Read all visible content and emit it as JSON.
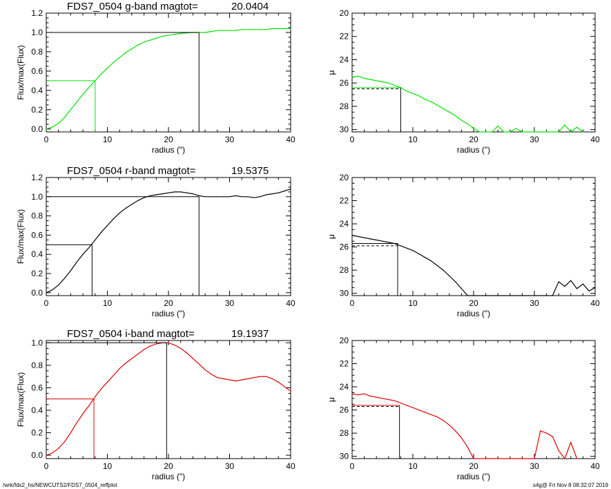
{
  "footer": {
    "left": "/wrk/fds2_hs/NEWCUTS2/FDS7_0504_reffplot",
    "right": "s4g@  Fri Nov  8 08:32:07 2019"
  },
  "chart_data": [
    {
      "type": "line",
      "panel": "g-growth",
      "title_name": "FDS7_0504 g-band  magtot=",
      "title_value": "20.0404",
      "xlabel": "radius (\")",
      "ylabel": "Flux/max(Flux)",
      "xlim": [
        0,
        40
      ],
      "ylim": [
        -0.03,
        1.2
      ],
      "xticks": [
        0,
        10,
        20,
        30,
        40
      ],
      "yticks": [
        "0.0",
        "0.2",
        "0.4",
        "0.6",
        "0.8",
        "1.0",
        "1.2"
      ],
      "color": "#00e000",
      "series": [
        {
          "x": [
            0,
            1,
            2,
            3,
            4,
            5,
            6,
            7,
            8,
            9,
            10,
            11,
            12,
            13,
            14,
            15,
            16,
            17,
            18,
            19,
            20,
            21,
            22,
            23,
            24,
            25,
            26,
            27,
            28,
            29,
            30,
            31,
            32,
            33,
            34,
            35,
            36,
            37,
            38,
            39,
            40
          ],
          "y": [
            0.0,
            0.02,
            0.06,
            0.12,
            0.2,
            0.28,
            0.36,
            0.43,
            0.5,
            0.57,
            0.63,
            0.69,
            0.74,
            0.79,
            0.83,
            0.87,
            0.9,
            0.92,
            0.94,
            0.96,
            0.97,
            0.98,
            0.99,
            0.995,
            1.0,
            1.0,
            1.0,
            1.01,
            1.02,
            1.02,
            1.02,
            1.02,
            1.03,
            1.03,
            1.03,
            1.03,
            1.03,
            1.04,
            1.04,
            1.04,
            1.04
          ]
        }
      ],
      "reference_lines": {
        "half_radius": 8.0,
        "half_flux": 0.5,
        "total_radius": 25.0,
        "total_flux": 1.0
      }
    },
    {
      "type": "line",
      "panel": "g-profile",
      "xlabel": "radius (\")",
      "ylabel": "μ",
      "xlim": [
        0,
        40
      ],
      "ylim": [
        30.2,
        20
      ],
      "y_inverted": true,
      "xticks": [
        0,
        10,
        20,
        30,
        40
      ],
      "yticks": [
        "20",
        "22",
        "24",
        "26",
        "28",
        "30"
      ],
      "color": "#00e000",
      "series": [
        {
          "x": [
            0,
            1,
            2,
            3,
            4,
            5,
            6,
            7,
            8,
            9,
            10,
            11,
            12,
            13,
            14,
            15,
            16,
            17,
            18,
            19,
            20,
            21,
            22,
            23,
            24,
            25,
            26,
            27,
            28,
            29,
            30,
            31,
            32,
            33,
            34,
            35,
            36,
            37,
            38
          ],
          "y": [
            25.5,
            25.4,
            25.6,
            25.7,
            25.8,
            25.9,
            26.0,
            26.2,
            26.4,
            26.7,
            26.9,
            27.1,
            27.4,
            27.6,
            27.9,
            28.2,
            28.5,
            28.8,
            29.2,
            29.5,
            29.9,
            30.2,
            30.2,
            30.2,
            29.7,
            30.2,
            30.2,
            29.9,
            30.2,
            30.2,
            30.2,
            30.2,
            30.2,
            30.2,
            30.2,
            29.6,
            30.2,
            29.8,
            30.2
          ]
        }
      ],
      "reference_lines": {
        "r_e": 8.0,
        "mu_e": 26.4,
        "mu_e_dashed": 26.5
      }
    },
    {
      "type": "line",
      "panel": "r-growth",
      "title_name": "FDS7_0504 r-band  magtot=",
      "title_value": "19.5375",
      "xlabel": "radius (\")",
      "ylabel": "Flux/max(Flux)",
      "xlim": [
        0,
        40
      ],
      "ylim": [
        -0.03,
        1.2
      ],
      "xticks": [
        0,
        10,
        20,
        30,
        40
      ],
      "yticks": [
        "0.0",
        "0.2",
        "0.4",
        "0.6",
        "0.8",
        "1.0",
        "1.2"
      ],
      "color": "#000000",
      "series": [
        {
          "x": [
            0,
            1,
            2,
            3,
            4,
            5,
            6,
            7,
            8,
            9,
            10,
            11,
            12,
            13,
            14,
            15,
            16,
            17,
            18,
            19,
            20,
            21,
            22,
            23,
            24,
            25,
            26,
            27,
            28,
            29,
            30,
            31,
            32,
            33,
            34,
            35,
            36,
            37,
            38,
            39,
            40
          ],
          "y": [
            0.0,
            0.03,
            0.08,
            0.15,
            0.23,
            0.32,
            0.4,
            0.47,
            0.55,
            0.63,
            0.7,
            0.77,
            0.83,
            0.88,
            0.92,
            0.96,
            0.99,
            1.01,
            1.02,
            1.03,
            1.04,
            1.05,
            1.05,
            1.04,
            1.03,
            1.01,
            1.0,
            1.0,
            1.0,
            1.0,
            1.0,
            1.01,
            1.0,
            1.0,
            0.99,
            1.0,
            1.02,
            1.03,
            1.04,
            1.06,
            1.08
          ]
        }
      ],
      "reference_lines": {
        "half_radius": 7.5,
        "half_flux": 0.5,
        "total_radius": 25.0,
        "total_flux": 1.0
      }
    },
    {
      "type": "line",
      "panel": "r-profile",
      "xlabel": "radius (\")",
      "ylabel": "μ",
      "xlim": [
        0,
        40
      ],
      "ylim": [
        30.2,
        20
      ],
      "y_inverted": true,
      "xticks": [
        0,
        10,
        20,
        30,
        40
      ],
      "yticks": [
        "20",
        "22",
        "24",
        "26",
        "28",
        "30"
      ],
      "color": "#000000",
      "series": [
        {
          "x": [
            0,
            1,
            2,
            3,
            4,
            5,
            6,
            7,
            8,
            9,
            10,
            11,
            12,
            13,
            14,
            15,
            16,
            17,
            18,
            19,
            20,
            21,
            22,
            23,
            24,
            25,
            26,
            27,
            28,
            29,
            30,
            31,
            32,
            33,
            34,
            35,
            36,
            37,
            38,
            39,
            40
          ],
          "y": [
            25.0,
            25.1,
            25.2,
            25.3,
            25.4,
            25.5,
            25.6,
            25.7,
            25.9,
            26.1,
            26.3,
            26.6,
            26.9,
            27.2,
            27.6,
            28.0,
            28.5,
            29.0,
            29.6,
            30.2,
            30.2,
            30.2,
            30.2,
            30.2,
            30.2,
            30.2,
            30.2,
            30.2,
            30.2,
            30.2,
            30.2,
            30.2,
            30.2,
            30.2,
            29.0,
            29.4,
            28.9,
            29.6,
            29.2,
            29.8,
            29.5
          ]
        }
      ],
      "reference_lines": {
        "r_e": 7.5,
        "mu_e": 25.7,
        "mu_e_dashed": 25.9
      }
    },
    {
      "type": "line",
      "panel": "i-growth",
      "title_name": "FDS7_0504 i-band  magtot=",
      "title_value": "19.1937",
      "xlabel": "radius (\")",
      "ylabel": "Flux/max(Flux)",
      "xlim": [
        0,
        40
      ],
      "ylim": [
        -0.03,
        1.02
      ],
      "xticks": [
        0,
        10,
        20,
        30,
        40
      ],
      "yticks": [
        "0.0",
        "0.2",
        "0.4",
        "0.6",
        "0.8",
        "1.0"
      ],
      "color": "#e00000",
      "series": [
        {
          "x": [
            0,
            1,
            2,
            3,
            4,
            5,
            6,
            7,
            8,
            9,
            10,
            11,
            12,
            13,
            14,
            15,
            16,
            17,
            18,
            19,
            20,
            21,
            22,
            23,
            24,
            25,
            26,
            27,
            28,
            29,
            30,
            31,
            32,
            33,
            34,
            35,
            36,
            37,
            38,
            39,
            40
          ],
          "y": [
            0.0,
            0.02,
            0.06,
            0.12,
            0.2,
            0.29,
            0.37,
            0.44,
            0.52,
            0.59,
            0.65,
            0.71,
            0.77,
            0.82,
            0.86,
            0.9,
            0.94,
            0.97,
            0.99,
            1.0,
            1.0,
            0.98,
            0.95,
            0.91,
            0.86,
            0.81,
            0.76,
            0.72,
            0.69,
            0.68,
            0.67,
            0.66,
            0.67,
            0.68,
            0.69,
            0.7,
            0.7,
            0.68,
            0.65,
            0.61,
            0.57
          ]
        }
      ],
      "reference_lines": {
        "half_radius": 7.8,
        "half_flux": 0.5,
        "total_radius": 19.7,
        "total_flux": 1.0
      }
    },
    {
      "type": "line",
      "panel": "i-profile",
      "xlabel": "radius (\")",
      "ylabel": "μ",
      "xlim": [
        0,
        40
      ],
      "ylim": [
        30.2,
        20
      ],
      "y_inverted": true,
      "xticks": [
        0,
        10,
        20,
        30,
        40
      ],
      "yticks": [
        "20",
        "22",
        "24",
        "26",
        "28",
        "30"
      ],
      "color": "#e00000",
      "series": [
        {
          "x": [
            0,
            1,
            2,
            3,
            4,
            5,
            6,
            7,
            8,
            9,
            10,
            11,
            12,
            13,
            14,
            15,
            16,
            17,
            18,
            19,
            20,
            21,
            22,
            23,
            24,
            25,
            26,
            27,
            28,
            29,
            30,
            31,
            32,
            33,
            34,
            35,
            36,
            37
          ],
          "y": [
            24.6,
            24.7,
            24.6,
            24.8,
            24.9,
            25.0,
            25.1,
            25.2,
            25.4,
            25.6,
            25.8,
            26.0,
            26.2,
            26.4,
            26.6,
            26.9,
            27.3,
            27.8,
            28.4,
            29.2,
            30.2,
            30.2,
            30.2,
            30.2,
            30.2,
            30.2,
            30.2,
            30.2,
            30.2,
            30.2,
            30.2,
            27.8,
            28.0,
            28.3,
            29.5,
            30.2,
            28.8,
            30.2
          ]
        }
      ],
      "reference_lines": {
        "r_e": 7.8,
        "mu_e": 25.6,
        "mu_e_dashed": 25.7
      }
    }
  ]
}
